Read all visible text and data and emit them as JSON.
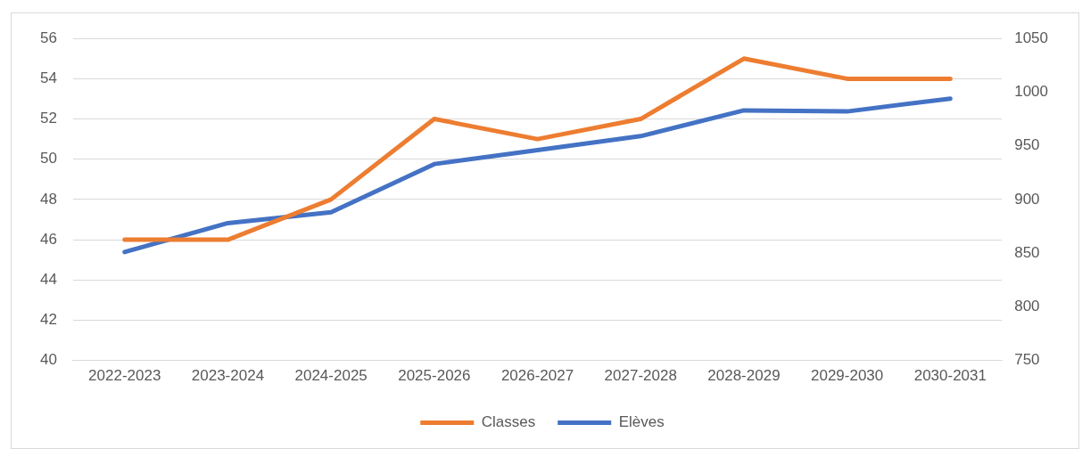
{
  "chart_data": {
    "type": "line",
    "categories": [
      "2022-2023",
      "2023-2024",
      "2024-2025",
      "2025-2026",
      "2026-2027",
      "2027-2028",
      "2028-2029",
      "2029-2030",
      "2030-2031"
    ],
    "series": [
      {
        "name": "Classes",
        "color": "#ed7d31",
        "values": [
          46,
          46,
          48,
          52,
          51,
          52,
          55,
          54,
          54
        ]
      },
      {
        "name": "Elèves",
        "color": "#4472c4",
        "axis": "y2",
        "values": [
          851,
          878,
          888,
          933,
          946,
          959,
          983,
          982,
          994
        ]
      }
    ],
    "ylim": [
      40,
      56
    ],
    "yticks": [
      40,
      42,
      44,
      46,
      48,
      50,
      52,
      54,
      56
    ],
    "y2lim": [
      750,
      1050
    ],
    "y2ticks": [
      750,
      800,
      850,
      900,
      950,
      1000,
      1050
    ],
    "grid": "y",
    "legend": "bottom",
    "marker": "none",
    "line_style": "solid"
  }
}
